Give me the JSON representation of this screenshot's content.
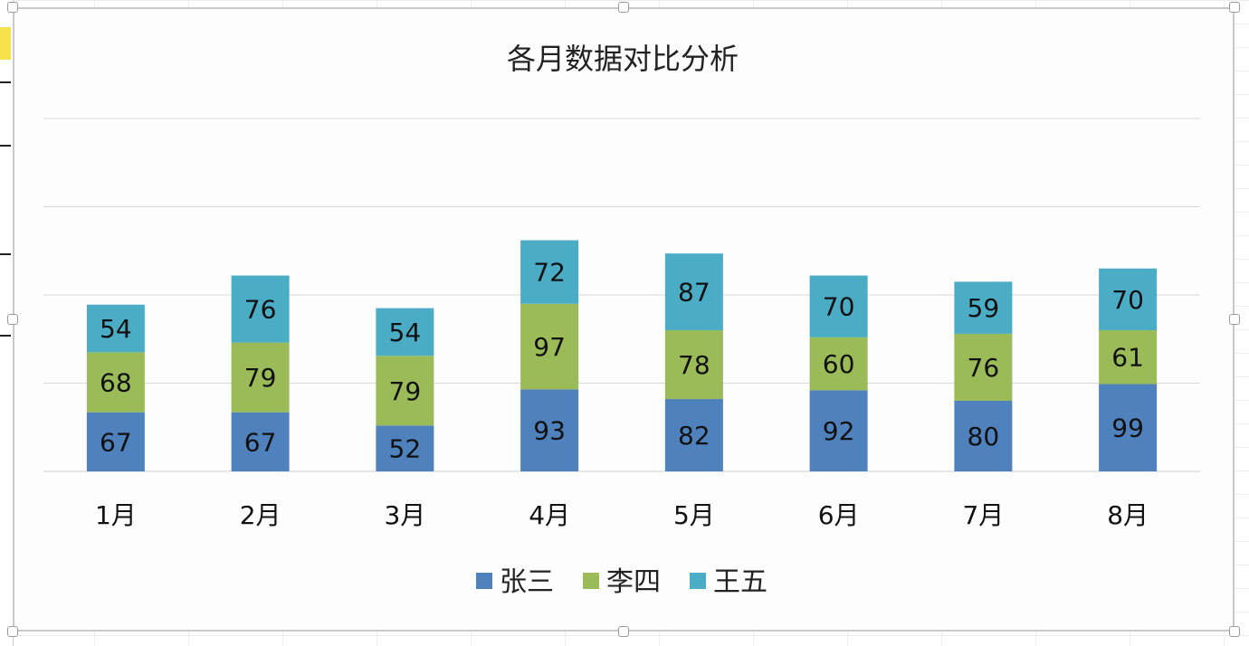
{
  "chart_data": {
    "type": "bar",
    "stacked": true,
    "title": "各月数据对比分析",
    "categories": [
      "1月",
      "2月",
      "3月",
      "4月",
      "5月",
      "6月",
      "7月",
      "8月"
    ],
    "series": [
      {
        "name": "张三",
        "color": "#4f81bd",
        "values": [
          67,
          67,
          52,
          93,
          82,
          92,
          80,
          99
        ]
      },
      {
        "name": "李四",
        "color": "#9bbb59",
        "values": [
          68,
          79,
          79,
          97,
          78,
          60,
          76,
          61
        ]
      },
      {
        "name": "王五",
        "color": "#4bacc6",
        "values": [
          54,
          76,
          54,
          72,
          87,
          70,
          59,
          70
        ]
      }
    ],
    "ylim": [
      0,
      400
    ],
    "grid": true,
    "y_axis_labels_visible": false,
    "data_labels": true,
    "legend_position": "bottom"
  }
}
